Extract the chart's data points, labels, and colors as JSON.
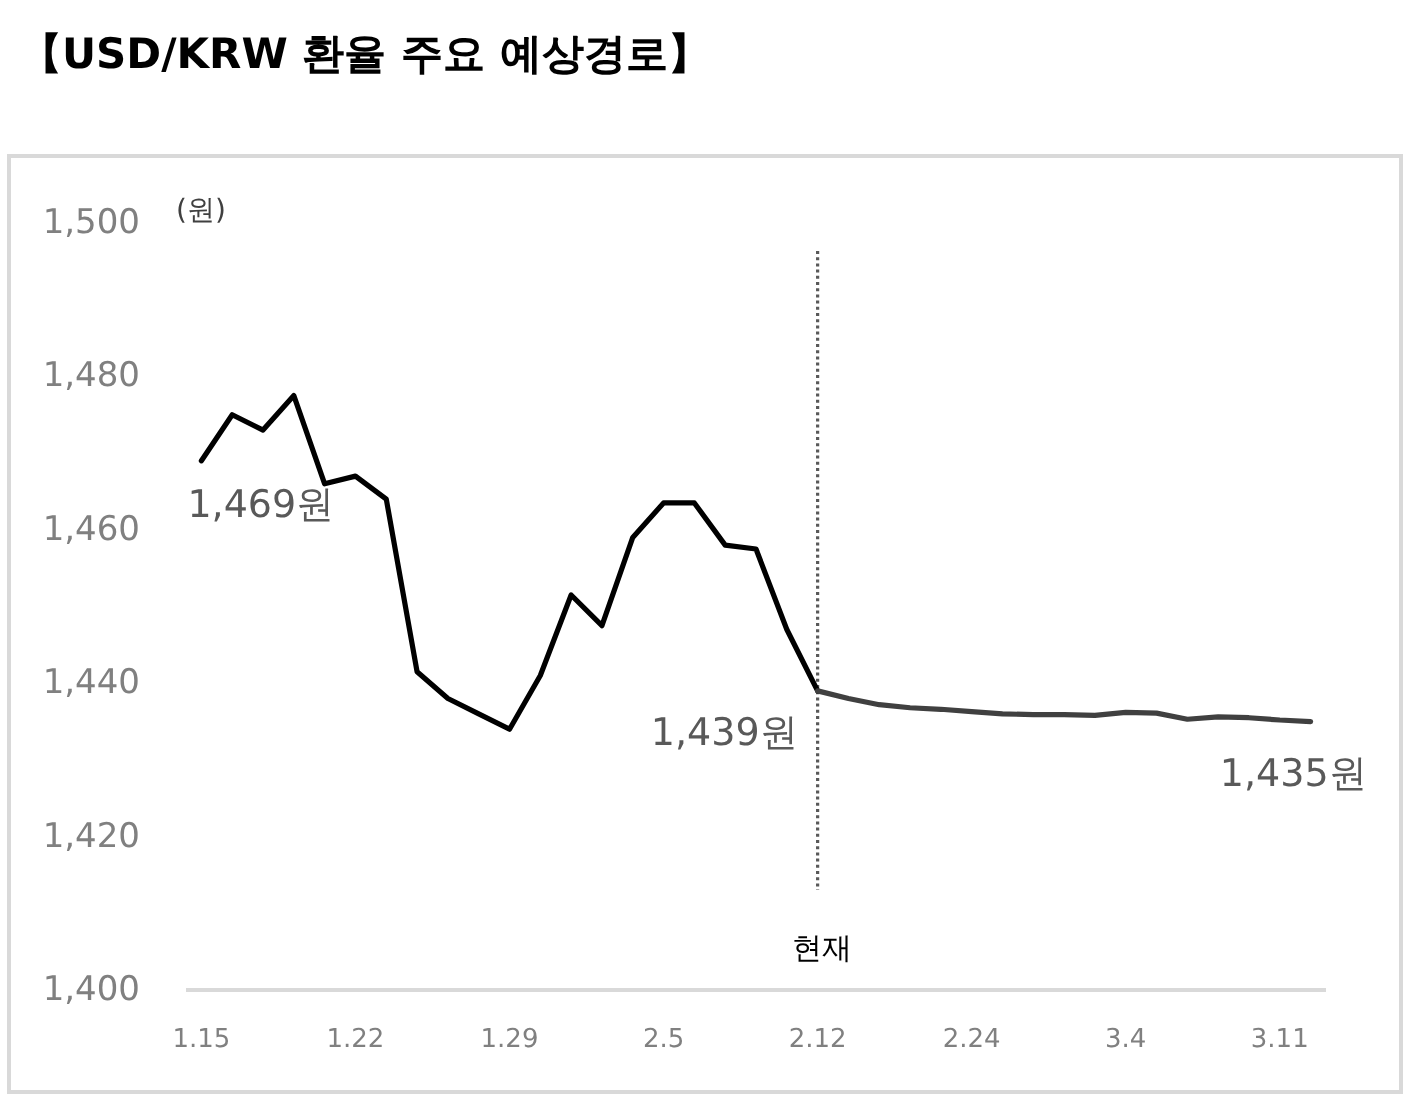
{
  "chart_data": {
    "type": "line",
    "title": "【USD/KRW 환율 주요 예상경로】",
    "ylabel": "(원)",
    "categories": [
      "1.15",
      null,
      null,
      null,
      null,
      "1.22",
      null,
      null,
      null,
      null,
      "1.29",
      null,
      null,
      null,
      null,
      "2.5",
      null,
      null,
      null,
      null,
      "2.12",
      null,
      null,
      null,
      null,
      "2.24",
      null,
      null,
      null,
      null,
      "3.4",
      null,
      null,
      null,
      null,
      "3.11",
      null
    ],
    "series": [
      {
        "color": "#000000",
        "values": [
          1469,
          1475,
          1473,
          1477.5,
          1466,
          1467,
          1464,
          1441.5,
          1438,
          1436,
          1434,
          1441,
          1451.5,
          1447.5,
          1459,
          1463.5,
          1463.5,
          1458,
          1457.5,
          1447,
          1439,
          null,
          null,
          null,
          null,
          null,
          null,
          null,
          null,
          null,
          null,
          null,
          null,
          null,
          null,
          null,
          null
        ],
        "value_labels": [
          "1,469원",
          null,
          null,
          null,
          null,
          null,
          null,
          null,
          null,
          null,
          null,
          null,
          null,
          null,
          null,
          null,
          null,
          null,
          null,
          null,
          "1,439원",
          null,
          null,
          null,
          null,
          null,
          null,
          null,
          null,
          null,
          null,
          null,
          null,
          null,
          null,
          null,
          null
        ]
      },
      {
        "color": "#404040",
        "values": [
          null,
          null,
          null,
          null,
          null,
          null,
          null,
          null,
          null,
          null,
          null,
          null,
          null,
          null,
          null,
          null,
          null,
          null,
          null,
          null,
          1439,
          1438,
          1437.2,
          1436.8,
          1436.6,
          1436.3,
          1436,
          1435.9,
          1435.9,
          1435.8,
          1436.2,
          1436.1,
          1435.3,
          1435.6,
          1435.5,
          1435.2,
          1435
        ],
        "value_labels": [
          null,
          null,
          null,
          null,
          null,
          null,
          null,
          null,
          null,
          null,
          null,
          null,
          null,
          null,
          null,
          null,
          null,
          null,
          null,
          null,
          null,
          null,
          null,
          null,
          null,
          null,
          null,
          null,
          null,
          null,
          null,
          null,
          null,
          null,
          null,
          null,
          "1,435원"
        ]
      }
    ],
    "ylim": [
      1400,
      1500
    ],
    "yticks": [
      {
        "value": 1400,
        "label": "1,400"
      },
      {
        "value": 1420,
        "label": "1,420"
      },
      {
        "value": 1440,
        "label": "1,440"
      },
      {
        "value": 1460,
        "label": "1,460"
      },
      {
        "value": 1480,
        "label": "1,480"
      },
      {
        "value": 1500,
        "label": "1,500"
      }
    ],
    "ref_lines": [
      {
        "axis": "x",
        "value": "2.12",
        "label": "현재",
        "color": "#595959",
        "line_style": "dotted"
      }
    ]
  }
}
